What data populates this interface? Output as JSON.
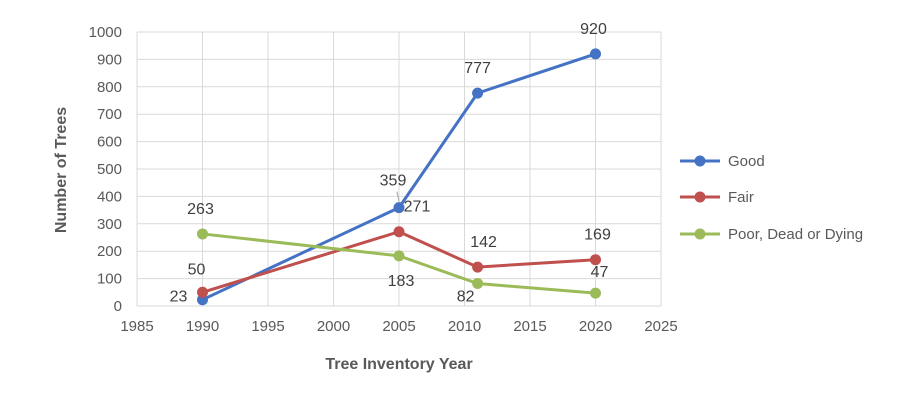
{
  "chart_data": {
    "type": "line",
    "xlabel": "Tree Inventory Year",
    "ylabel": "Number of Trees",
    "xlim": [
      1985,
      2025
    ],
    "ylim": [
      0,
      1000
    ],
    "xticks": [
      1985,
      1990,
      1995,
      2000,
      2005,
      2010,
      2015,
      2020,
      2025
    ],
    "yticks": [
      0,
      100,
      200,
      300,
      400,
      500,
      600,
      700,
      800,
      900,
      1000
    ],
    "grid": true,
    "legend": "right",
    "series": [
      {
        "name": "Good",
        "color": "#4472c4",
        "x": [
          1990,
          2005,
          2011,
          2020
        ],
        "y": [
          23,
          359,
          777,
          920
        ],
        "labels": [
          "23",
          "359",
          "777",
          "920"
        ]
      },
      {
        "name": "Fair",
        "color": "#c0504d",
        "x": [
          1990,
          2005,
          2011,
          2020
        ],
        "y": [
          50,
          271,
          142,
          169
        ],
        "labels": [
          "50",
          "271",
          "142",
          "169"
        ]
      },
      {
        "name": "Poor, Dead or Dying",
        "color": "#9bbb59",
        "x": [
          1990,
          2005,
          2011,
          2020
        ],
        "y": [
          263,
          183,
          82,
          47
        ],
        "labels": [
          "263",
          "183",
          "82",
          "47"
        ]
      }
    ]
  }
}
